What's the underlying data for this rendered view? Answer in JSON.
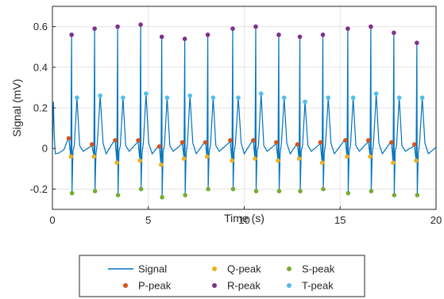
{
  "chart_data": {
    "type": "line",
    "title": "",
    "xlabel": "Time (s)",
    "ylabel": "Signal (mV)",
    "xlim": [
      0,
      20
    ],
    "ylim": [
      -0.3,
      0.7
    ],
    "xticks": [
      0,
      5,
      10,
      15,
      20
    ],
    "yticks": [
      -0.2,
      0,
      0.2,
      0.4,
      0.6
    ],
    "ytick_labels": [
      "-0.2",
      "0",
      "0.2",
      "0.4",
      "0.6"
    ],
    "grid": true,
    "legend_position": "bottom-outside",
    "beats": [
      1.0,
      2.2,
      3.4,
      4.6,
      5.7,
      6.9,
      8.1,
      9.4,
      10.6,
      11.8,
      12.9,
      14.1,
      15.4,
      16.6,
      17.8,
      19.0
    ],
    "series": [
      {
        "name": "Signal",
        "kind": "line",
        "color": "#0072BD",
        "x": [
          0,
          0.05,
          0.1,
          0.15,
          0.3,
          0.6,
          0.85,
          0.96,
          1.0,
          1.02,
          1.07,
          1.14,
          1.28,
          1.42,
          1.6,
          2.06,
          2.16,
          2.2,
          2.22,
          2.27,
          2.34,
          2.49,
          2.64,
          2.8,
          3.27,
          3.36,
          3.4,
          3.42,
          3.47,
          3.54,
          3.68,
          3.82,
          4.0,
          4.47,
          4.56,
          4.6,
          4.62,
          4.67,
          4.74,
          4.88,
          5.02,
          5.2,
          5.57,
          5.66,
          5.7,
          5.72,
          5.77,
          5.84,
          5.98,
          6.12,
          6.3,
          6.77,
          6.86,
          6.9,
          6.92,
          6.97,
          7.04,
          7.17,
          7.32,
          7.5,
          7.97,
          8.06,
          8.1,
          8.12,
          8.17,
          8.24,
          8.38,
          8.52,
          8.7,
          9.27,
          9.36,
          9.4,
          9.42,
          9.47,
          9.54,
          9.69,
          9.84,
          10.0,
          10.47,
          10.56,
          10.6,
          10.62,
          10.67,
          10.74,
          10.88,
          11.02,
          11.2,
          11.67,
          11.76,
          11.8,
          11.82,
          11.87,
          11.94,
          12.08,
          12.22,
          12.4,
          12.77,
          12.86,
          12.9,
          12.92,
          12.97,
          13.04,
          13.17,
          13.32,
          13.5,
          13.97,
          14.06,
          14.1,
          14.12,
          14.17,
          14.24,
          14.38,
          14.52,
          14.7,
          15.27,
          15.36,
          15.4,
          15.42,
          15.47,
          15.54,
          15.68,
          15.82,
          16.0,
          16.47,
          16.56,
          16.6,
          16.62,
          16.67,
          16.74,
          16.88,
          17.02,
          17.2,
          17.67,
          17.76,
          17.8,
          17.82,
          17.87,
          17.94,
          18.08,
          18.22,
          18.4,
          18.87,
          18.96,
          19.0,
          19.02,
          19.07,
          19.14,
          19.28,
          19.42,
          19.6,
          20.0
        ],
        "y": [
          0.0,
          0.23,
          0.05,
          -0.02,
          -0.03,
          0.0,
          0.05,
          -0.04,
          0.56,
          -0.22,
          -0.02,
          0.02,
          0.25,
          0.02,
          -0.02,
          0.02,
          -0.04,
          0.59,
          -0.21,
          -0.02,
          0.02,
          0.26,
          0.02,
          -0.02,
          0.04,
          -0.07,
          0.6,
          -0.23,
          -0.02,
          0.02,
          0.25,
          0.02,
          -0.02,
          0.04,
          -0.06,
          0.61,
          -0.2,
          -0.02,
          0.02,
          0.27,
          0.02,
          -0.02,
          0.01,
          -0.08,
          0.55,
          -0.24,
          -0.02,
          0.02,
          0.25,
          0.02,
          -0.02,
          0.03,
          -0.05,
          0.54,
          -0.23,
          -0.02,
          0.02,
          0.26,
          0.02,
          -0.02,
          0.03,
          -0.04,
          0.56,
          -0.2,
          -0.02,
          0.02,
          0.25,
          0.02,
          -0.02,
          0.04,
          -0.06,
          0.59,
          -0.2,
          -0.02,
          0.02,
          0.25,
          0.02,
          -0.02,
          0.04,
          -0.05,
          0.6,
          -0.21,
          -0.02,
          0.02,
          0.27,
          0.02,
          -0.02,
          0.03,
          -0.06,
          0.56,
          -0.21,
          -0.02,
          0.02,
          0.25,
          0.02,
          -0.02,
          0.02,
          -0.05,
          0.55,
          -0.21,
          -0.02,
          0.02,
          0.23,
          0.02,
          -0.02,
          0.03,
          -0.07,
          0.56,
          -0.2,
          -0.02,
          0.02,
          0.25,
          0.02,
          -0.02,
          0.04,
          -0.04,
          0.59,
          -0.22,
          -0.02,
          0.02,
          0.25,
          0.02,
          -0.02,
          0.04,
          -0.04,
          0.6,
          -0.21,
          -0.02,
          0.02,
          0.27,
          0.02,
          -0.02,
          0.03,
          -0.07,
          0.57,
          -0.23,
          -0.02,
          0.02,
          0.25,
          0.02,
          -0.02,
          0.02,
          -0.06,
          0.52,
          -0.23,
          -0.02,
          0.02,
          0.25,
          0.02,
          -0.02,
          0.0
        ]
      },
      {
        "name": "P-peak",
        "kind": "marker",
        "color": "#D95319",
        "x": [
          0.85,
          2.06,
          3.27,
          4.47,
          5.57,
          6.77,
          7.97,
          9.27,
          10.47,
          11.67,
          12.77,
          13.97,
          15.27,
          16.47,
          17.67,
          18.87
        ],
        "y": [
          0.05,
          0.02,
          0.04,
          0.04,
          0.01,
          0.03,
          0.03,
          0.04,
          0.04,
          0.03,
          0.02,
          0.03,
          0.04,
          0.04,
          0.03,
          0.02
        ]
      },
      {
        "name": "Q-peak",
        "kind": "marker",
        "color": "#EDB120",
        "x": [
          0.96,
          2.16,
          3.36,
          4.56,
          5.66,
          6.86,
          8.06,
          9.36,
          10.56,
          11.76,
          12.86,
          14.06,
          15.36,
          16.56,
          17.76,
          18.96
        ],
        "y": [
          -0.04,
          -0.04,
          -0.07,
          -0.06,
          -0.08,
          -0.05,
          -0.04,
          -0.06,
          -0.05,
          -0.06,
          -0.05,
          -0.07,
          -0.04,
          -0.04,
          -0.07,
          -0.06
        ]
      },
      {
        "name": "S-peak",
        "kind": "marker",
        "color": "#77AC30",
        "x": [
          1.02,
          2.22,
          3.42,
          4.62,
          5.72,
          6.92,
          8.12,
          9.42,
          10.62,
          11.82,
          12.92,
          14.12,
          15.42,
          16.62,
          17.82,
          19.02
        ],
        "y": [
          -0.22,
          -0.21,
          -0.23,
          -0.2,
          -0.24,
          -0.23,
          -0.2,
          -0.2,
          -0.21,
          -0.21,
          -0.21,
          -0.2,
          -0.22,
          -0.21,
          -0.23,
          -0.23
        ]
      },
      {
        "name": "R-peak",
        "kind": "marker",
        "color": "#7E2F8E",
        "x": [
          1.0,
          2.2,
          3.4,
          4.6,
          5.7,
          6.9,
          8.1,
          9.4,
          10.6,
          11.8,
          12.9,
          14.1,
          15.4,
          16.6,
          17.8,
          19.0
        ],
        "y": [
          0.56,
          0.59,
          0.6,
          0.61,
          0.55,
          0.54,
          0.56,
          0.59,
          0.6,
          0.56,
          0.55,
          0.56,
          0.59,
          0.6,
          0.57,
          0.52
        ]
      },
      {
        "name": "T-peak",
        "kind": "marker",
        "color": "#4DBEEE",
        "x": [
          1.28,
          2.49,
          3.68,
          4.88,
          5.98,
          7.17,
          8.38,
          9.69,
          10.88,
          12.08,
          13.17,
          14.38,
          15.68,
          16.88,
          18.08,
          19.28
        ],
        "y": [
          0.25,
          0.26,
          0.25,
          0.27,
          0.25,
          0.26,
          0.25,
          0.25,
          0.27,
          0.25,
          0.23,
          0.25,
          0.25,
          0.27,
          0.25,
          0.25
        ]
      }
    ],
    "legend_rows": [
      [
        "Signal",
        "Q-peak",
        "S-peak"
      ],
      [
        "P-peak",
        "R-peak",
        "T-peak"
      ]
    ]
  }
}
